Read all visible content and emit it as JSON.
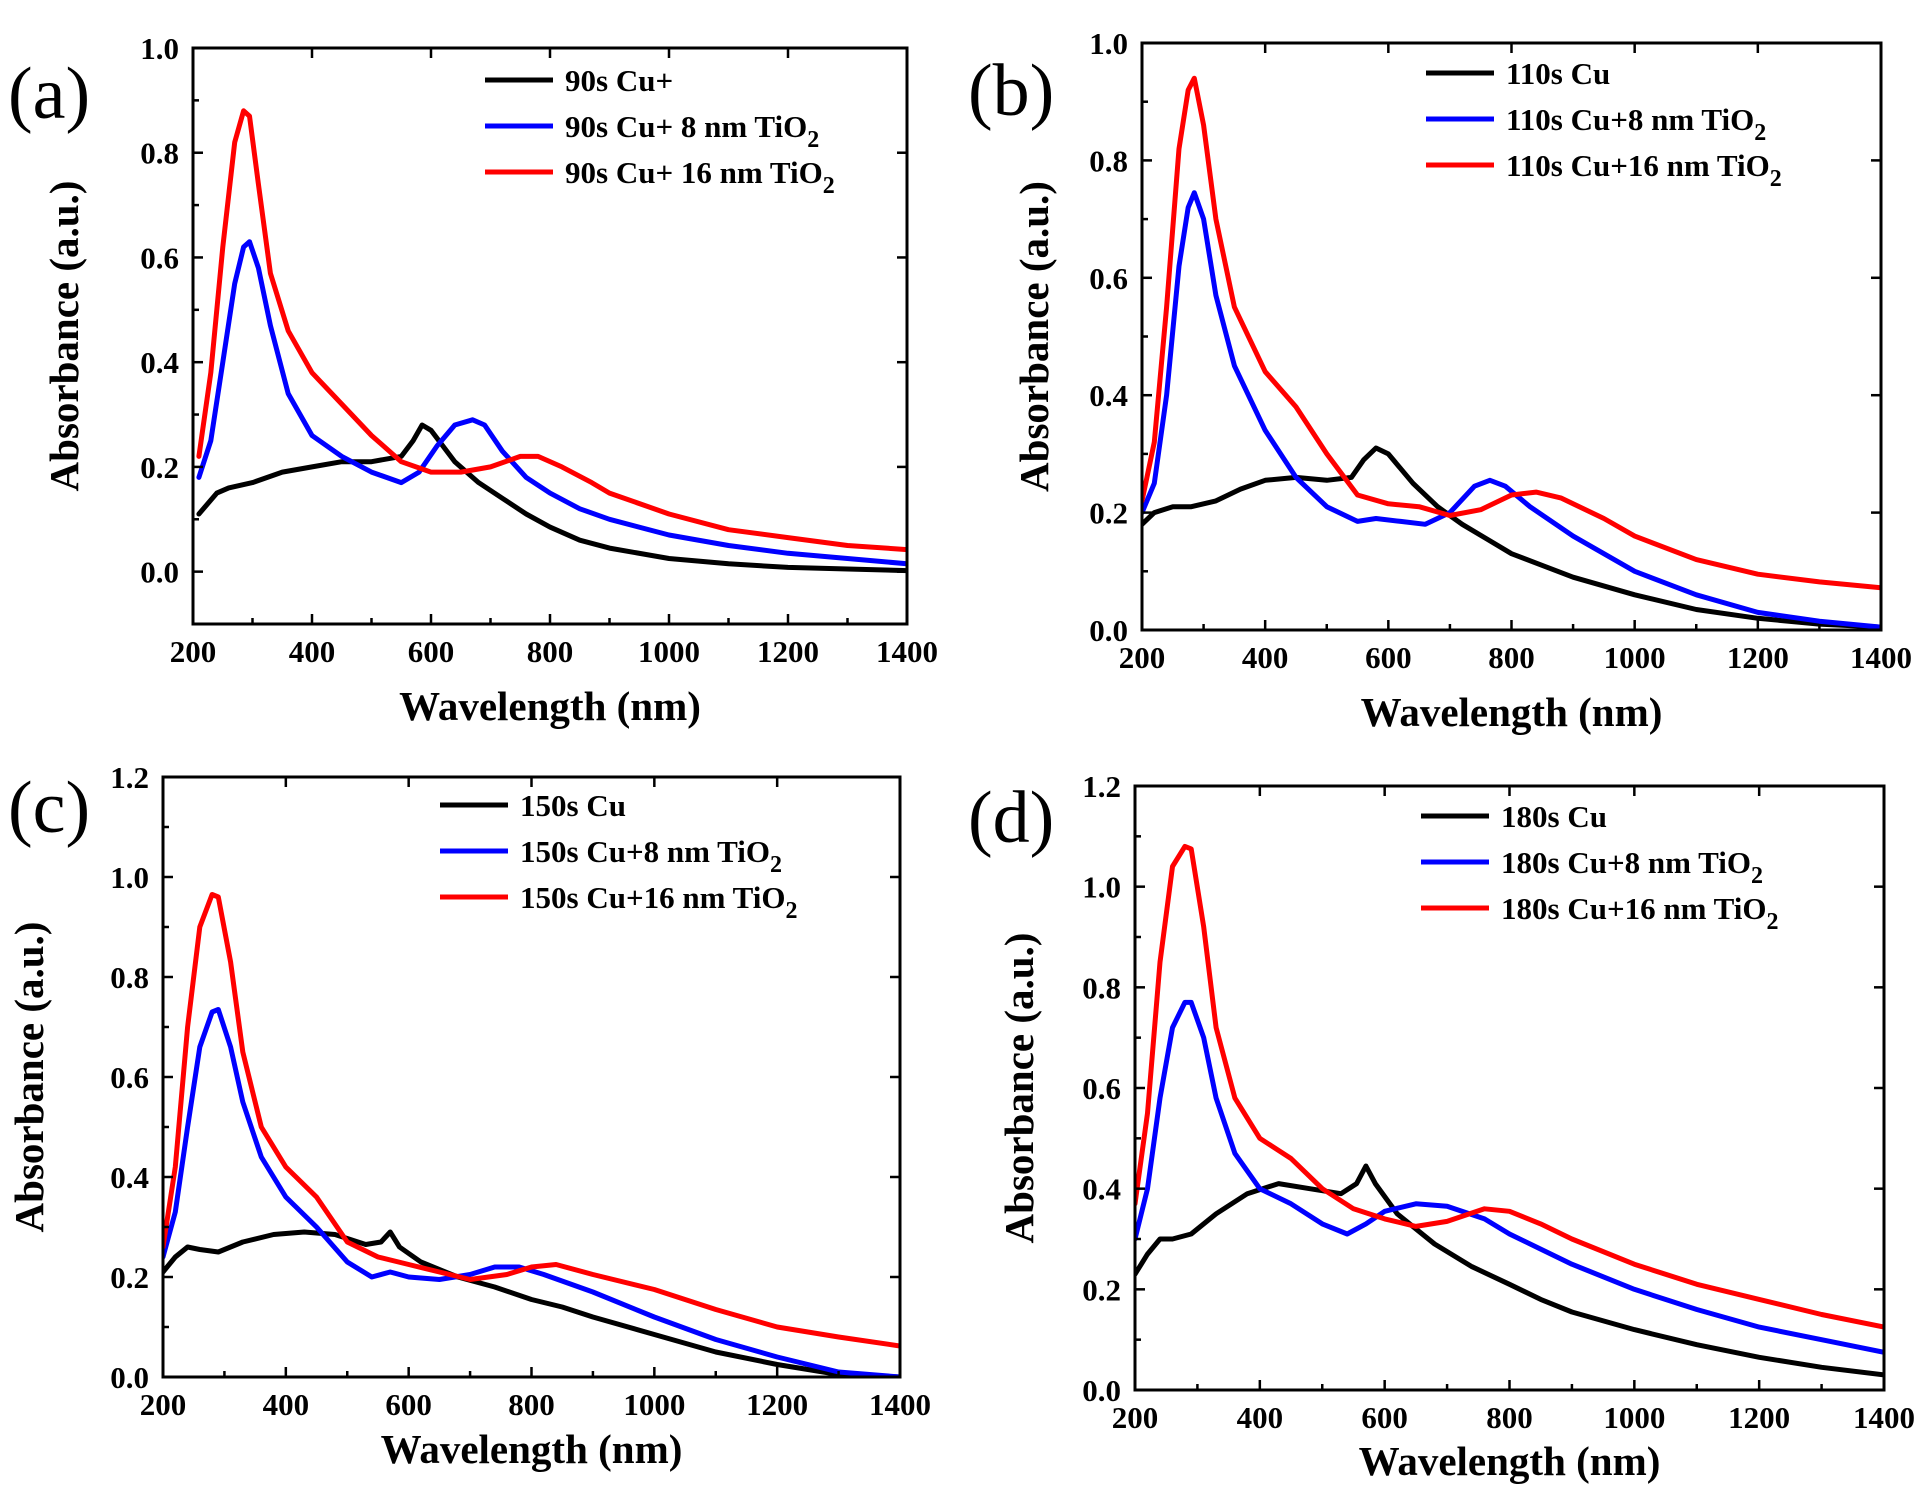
{
  "chart_data": [
    {
      "panel": "(a)",
      "type": "line",
      "xlabel": "Wavelength (nm)",
      "ylabel": "Absorbance (a.u.)",
      "xlim": [
        200,
        1400
      ],
      "ylim": [
        -0.1,
        1.0
      ],
      "xticks": [
        200,
        400,
        600,
        800,
        1000,
        1200,
        1400
      ],
      "yticks": [
        0.0,
        0.2,
        0.4,
        0.6,
        0.8,
        1.0
      ],
      "ytick_labels": [
        "0.0",
        "0.2",
        "0.4",
        "0.6",
        "0.8",
        "1.0"
      ],
      "legend_position": "top-right",
      "series": [
        {
          "name": "90s Cu",
          "legend_label": "90s Cu+",
          "color": "#000000",
          "x": [
            210,
            240,
            260,
            300,
            350,
            400,
            450,
            500,
            550,
            570,
            585,
            600,
            640,
            680,
            720,
            760,
            800,
            850,
            900,
            1000,
            1100,
            1200,
            1300,
            1400
          ],
          "y": [
            0.11,
            0.15,
            0.16,
            0.17,
            0.19,
            0.2,
            0.21,
            0.21,
            0.22,
            0.25,
            0.28,
            0.27,
            0.21,
            0.17,
            0.14,
            0.11,
            0.085,
            0.06,
            0.045,
            0.025,
            0.015,
            0.008,
            0.005,
            0.002
          ]
        },
        {
          "name": "90s Cu+ 8 nm TiO2",
          "legend_label": "90s Cu+ 8 nm TiO",
          "color": "#0000ff",
          "x": [
            210,
            230,
            250,
            270,
            285,
            295,
            310,
            330,
            360,
            400,
            450,
            500,
            550,
            580,
            610,
            640,
            670,
            690,
            720,
            760,
            800,
            850,
            900,
            1000,
            1100,
            1200,
            1300,
            1400
          ],
          "y": [
            0.18,
            0.25,
            0.4,
            0.55,
            0.62,
            0.63,
            0.58,
            0.47,
            0.34,
            0.26,
            0.22,
            0.19,
            0.17,
            0.19,
            0.24,
            0.28,
            0.29,
            0.28,
            0.23,
            0.18,
            0.15,
            0.12,
            0.1,
            0.07,
            0.05,
            0.035,
            0.025,
            0.015
          ]
        },
        {
          "name": "90s Cu+ 16 nm TiO2",
          "legend_label": "90s Cu+ 16 nm TiO",
          "color": "#ff0000",
          "x": [
            210,
            230,
            250,
            270,
            285,
            295,
            310,
            330,
            360,
            400,
            450,
            500,
            550,
            600,
            650,
            700,
            750,
            780,
            820,
            870,
            900,
            1000,
            1100,
            1200,
            1300,
            1400
          ],
          "y": [
            0.22,
            0.38,
            0.62,
            0.82,
            0.88,
            0.87,
            0.74,
            0.57,
            0.46,
            0.38,
            0.32,
            0.26,
            0.21,
            0.19,
            0.19,
            0.2,
            0.22,
            0.22,
            0.2,
            0.17,
            0.15,
            0.11,
            0.08,
            0.065,
            0.05,
            0.042
          ]
        }
      ]
    },
    {
      "panel": "(b)",
      "type": "line",
      "xlabel": "Wavelength (nm)",
      "ylabel": "Absorbance (a.u.)",
      "xlim": [
        200,
        1400
      ],
      "ylim": [
        0.0,
        1.0
      ],
      "xticks": [
        200,
        400,
        600,
        800,
        1000,
        1200,
        1400
      ],
      "yticks": [
        0.0,
        0.2,
        0.4,
        0.6,
        0.8,
        1.0
      ],
      "ytick_labels": [
        "0.0",
        "0.2",
        "0.4",
        "0.6",
        "0.8",
        "1.0"
      ],
      "legend_position": "top-right",
      "series": [
        {
          "name": "110s Cu",
          "legend_label": "110s Cu",
          "color": "#000000",
          "x": [
            200,
            220,
            250,
            280,
            320,
            360,
            400,
            450,
            500,
            540,
            560,
            580,
            600,
            640,
            680,
            720,
            760,
            800,
            850,
            900,
            1000,
            1100,
            1200,
            1300,
            1400
          ],
          "y": [
            0.18,
            0.2,
            0.21,
            0.21,
            0.22,
            0.24,
            0.255,
            0.26,
            0.255,
            0.26,
            0.29,
            0.31,
            0.3,
            0.25,
            0.21,
            0.18,
            0.155,
            0.13,
            0.11,
            0.09,
            0.06,
            0.035,
            0.02,
            0.01,
            0.005
          ]
        },
        {
          "name": "110s Cu+8 nm TiO2",
          "legend_label": "110s Cu+8 nm TiO",
          "color": "#0000ff",
          "x": [
            200,
            220,
            240,
            260,
            275,
            285,
            300,
            320,
            350,
            400,
            450,
            500,
            550,
            580,
            620,
            660,
            700,
            740,
            765,
            790,
            830,
            900,
            1000,
            1100,
            1200,
            1300,
            1400
          ],
          "y": [
            0.2,
            0.25,
            0.4,
            0.62,
            0.72,
            0.745,
            0.7,
            0.57,
            0.45,
            0.34,
            0.26,
            0.21,
            0.185,
            0.19,
            0.185,
            0.18,
            0.2,
            0.245,
            0.255,
            0.245,
            0.21,
            0.16,
            0.1,
            0.06,
            0.03,
            0.015,
            0.005
          ]
        },
        {
          "name": "110s Cu+16 nm TiO2",
          "legend_label": "110s Cu+16 nm TiO",
          "color": "#ff0000",
          "x": [
            200,
            220,
            240,
            260,
            275,
            285,
            300,
            320,
            350,
            400,
            450,
            500,
            550,
            600,
            650,
            700,
            750,
            800,
            840,
            880,
            950,
            1000,
            1100,
            1200,
            1300,
            1400
          ],
          "y": [
            0.22,
            0.32,
            0.55,
            0.82,
            0.92,
            0.94,
            0.86,
            0.7,
            0.55,
            0.44,
            0.38,
            0.3,
            0.23,
            0.215,
            0.21,
            0.195,
            0.205,
            0.23,
            0.235,
            0.225,
            0.19,
            0.16,
            0.12,
            0.095,
            0.082,
            0.072
          ]
        }
      ]
    },
    {
      "panel": "(c)",
      "type": "line",
      "xlabel": "Wavelength (nm)",
      "ylabel": "Absorbance (a.u.)",
      "xlim": [
        200,
        1400
      ],
      "ylim": [
        0.0,
        1.2
      ],
      "xticks": [
        200,
        400,
        600,
        800,
        1000,
        1200,
        1400
      ],
      "yticks": [
        0.0,
        0.2,
        0.4,
        0.6,
        0.8,
        1.0,
        1.2
      ],
      "ytick_labels": [
        "0.0",
        "0.2",
        "0.4",
        "0.6",
        "0.8",
        "1.0",
        "1.2"
      ],
      "legend_position": "top-right",
      "series": [
        {
          "name": "150s Cu",
          "legend_label": "150s Cu",
          "color": "#000000",
          "x": [
            200,
            220,
            240,
            260,
            290,
            330,
            380,
            430,
            480,
            530,
            555,
            570,
            585,
            620,
            680,
            740,
            800,
            850,
            900,
            1000,
            1100,
            1200,
            1300,
            1400
          ],
          "y": [
            0.21,
            0.24,
            0.26,
            0.255,
            0.25,
            0.27,
            0.285,
            0.29,
            0.285,
            0.265,
            0.27,
            0.29,
            0.26,
            0.23,
            0.2,
            0.18,
            0.155,
            0.14,
            0.12,
            0.085,
            0.05,
            0.025,
            0.005,
            0.0
          ]
        },
        {
          "name": "150s Cu+8 nm TiO2",
          "legend_label": "150s Cu+8 nm TiO",
          "color": "#0000ff",
          "x": [
            200,
            220,
            240,
            260,
            280,
            290,
            310,
            330,
            360,
            400,
            450,
            500,
            540,
            570,
            600,
            650,
            700,
            740,
            780,
            820,
            900,
            1000,
            1100,
            1200,
            1300,
            1400
          ],
          "y": [
            0.24,
            0.33,
            0.5,
            0.66,
            0.73,
            0.735,
            0.66,
            0.55,
            0.44,
            0.36,
            0.3,
            0.23,
            0.2,
            0.21,
            0.2,
            0.195,
            0.205,
            0.22,
            0.22,
            0.205,
            0.17,
            0.12,
            0.075,
            0.04,
            0.01,
            0.0
          ]
        },
        {
          "name": "150s Cu+16 nm TiO2",
          "legend_label": "150s Cu+16 nm TiO",
          "color": "#ff0000",
          "x": [
            200,
            220,
            240,
            260,
            280,
            290,
            310,
            330,
            360,
            400,
            450,
            500,
            550,
            600,
            650,
            700,
            760,
            800,
            840,
            900,
            1000,
            1100,
            1200,
            1300,
            1400
          ],
          "y": [
            0.26,
            0.42,
            0.7,
            0.9,
            0.965,
            0.96,
            0.83,
            0.65,
            0.5,
            0.42,
            0.36,
            0.27,
            0.24,
            0.225,
            0.21,
            0.195,
            0.205,
            0.22,
            0.225,
            0.205,
            0.175,
            0.135,
            0.1,
            0.08,
            0.062
          ]
        }
      ]
    },
    {
      "panel": "(d)",
      "type": "line",
      "xlabel": "Wavelength (nm)",
      "ylabel": "Absorbance (a.u.)",
      "xlim": [
        200,
        1400
      ],
      "ylim": [
        0.0,
        1.2
      ],
      "xticks": [
        200,
        400,
        600,
        800,
        1000,
        1200,
        1400
      ],
      "yticks": [
        0.0,
        0.2,
        0.4,
        0.6,
        0.8,
        1.0,
        1.2
      ],
      "ytick_labels": [
        "0.0",
        "0.2",
        "0.4",
        "0.6",
        "0.8",
        "1.0",
        "1.2"
      ],
      "legend_position": "top-right",
      "series": [
        {
          "name": "180s Cu",
          "legend_label": "180s Cu",
          "color": "#000000",
          "x": [
            200,
            220,
            240,
            260,
            290,
            330,
            380,
            430,
            480,
            530,
            555,
            570,
            585,
            620,
            680,
            740,
            800,
            850,
            900,
            1000,
            1100,
            1200,
            1300,
            1400
          ],
          "y": [
            0.23,
            0.27,
            0.3,
            0.3,
            0.31,
            0.35,
            0.39,
            0.41,
            0.4,
            0.39,
            0.41,
            0.445,
            0.41,
            0.35,
            0.29,
            0.245,
            0.21,
            0.18,
            0.155,
            0.12,
            0.09,
            0.065,
            0.045,
            0.03
          ]
        },
        {
          "name": "180s Cu+8 nm TiO2",
          "legend_label": "180s Cu+8 nm TiO",
          "color": "#0000ff",
          "x": [
            200,
            220,
            240,
            260,
            280,
            290,
            310,
            330,
            360,
            400,
            450,
            500,
            540,
            570,
            600,
            650,
            700,
            760,
            800,
            850,
            900,
            1000,
            1100,
            1200,
            1300,
            1400
          ],
          "y": [
            0.3,
            0.4,
            0.58,
            0.72,
            0.77,
            0.77,
            0.7,
            0.58,
            0.47,
            0.4,
            0.37,
            0.33,
            0.31,
            0.33,
            0.355,
            0.37,
            0.365,
            0.34,
            0.31,
            0.28,
            0.25,
            0.2,
            0.16,
            0.125,
            0.1,
            0.075
          ]
        },
        {
          "name": "180s Cu+16 nm TiO2",
          "legend_label": "180s Cu+16 nm TiO",
          "color": "#ff0000",
          "x": [
            200,
            220,
            240,
            260,
            280,
            290,
            310,
            330,
            360,
            400,
            450,
            500,
            550,
            600,
            650,
            700,
            760,
            800,
            850,
            900,
            1000,
            1100,
            1200,
            1300,
            1400
          ],
          "y": [
            0.37,
            0.55,
            0.85,
            1.04,
            1.08,
            1.075,
            0.92,
            0.72,
            0.58,
            0.5,
            0.46,
            0.4,
            0.36,
            0.34,
            0.325,
            0.335,
            0.36,
            0.355,
            0.33,
            0.3,
            0.25,
            0.21,
            0.18,
            0.15,
            0.125
          ]
        }
      ]
    }
  ]
}
